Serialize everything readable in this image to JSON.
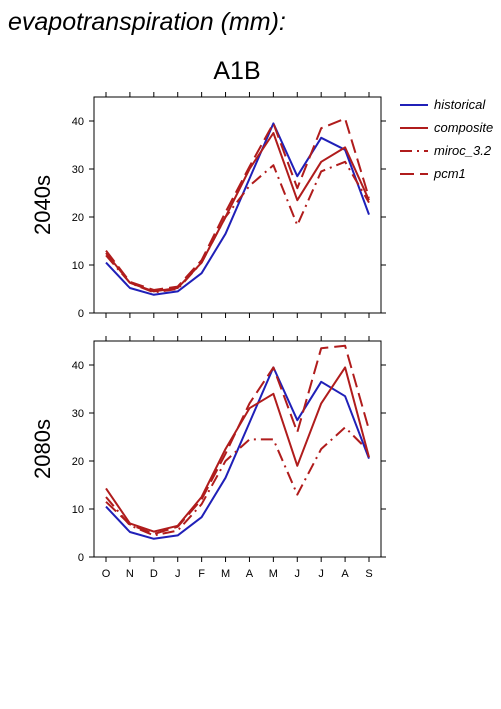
{
  "page_title": "evapotranspiration (mm):",
  "scenario_title": "A1B",
  "legend": [
    {
      "label": "historical",
      "color": "#2020b8",
      "dash": "solid"
    },
    {
      "label": "composite",
      "color": "#b01c1c",
      "dash": "solid"
    },
    {
      "label": "miroc_3.2",
      "color": "#b01c1c",
      "dash": "dashdot"
    },
    {
      "label": "pcm1",
      "color": "#b01c1c",
      "dash": "dash"
    }
  ],
  "chart_data": [
    {
      "type": "line",
      "ylabel": "2040s",
      "categories": [
        "O",
        "N",
        "D",
        "J",
        "F",
        "M",
        "A",
        "M",
        "J",
        "J",
        "A",
        "S"
      ],
      "ylim": [
        0,
        45
      ],
      "yticks": [
        0,
        10,
        20,
        30,
        40
      ],
      "series": [
        {
          "name": "historical",
          "values": [
            10.5,
            5.2,
            3.8,
            4.5,
            8.3,
            16.5,
            28.0,
            39.5,
            28.5,
            36.5,
            34.0,
            20.5
          ]
        },
        {
          "name": "composite",
          "values": [
            12.5,
            6.3,
            4.5,
            5.2,
            10.5,
            20.0,
            30.0,
            37.5,
            23.5,
            31.5,
            34.5,
            23.5
          ]
        },
        {
          "name": "miroc_3.2",
          "values": [
            12.0,
            6.3,
            4.3,
            5.0,
            10.5,
            20.0,
            26.5,
            30.8,
            18.3,
            29.5,
            31.5,
            23.0
          ]
        },
        {
          "name": "pcm1",
          "values": [
            13.0,
            6.5,
            4.8,
            5.5,
            11.0,
            21.0,
            30.5,
            39.5,
            26.0,
            38.5,
            40.5,
            24.0
          ]
        }
      ]
    },
    {
      "type": "line",
      "ylabel": "2080s",
      "categories": [
        "O",
        "N",
        "D",
        "J",
        "F",
        "M",
        "A",
        "M",
        "J",
        "J",
        "A",
        "S"
      ],
      "ylim": [
        0,
        45
      ],
      "yticks": [
        0,
        10,
        20,
        30,
        40
      ],
      "series": [
        {
          "name": "historical",
          "values": [
            10.5,
            5.2,
            3.8,
            4.5,
            8.3,
            16.5,
            28.0,
            39.5,
            28.5,
            36.5,
            33.5,
            20.5
          ]
        },
        {
          "name": "composite",
          "values": [
            14.3,
            7.0,
            5.3,
            6.5,
            12.5,
            22.5,
            31.0,
            34.0,
            19.0,
            32.0,
            39.5,
            20.8
          ]
        },
        {
          "name": "miroc_3.2",
          "values": [
            12.5,
            6.6,
            4.5,
            5.5,
            11.0,
            20.0,
            24.5,
            24.5,
            13.0,
            22.5,
            27.0,
            22.0
          ]
        },
        {
          "name": "pcm1",
          "values": [
            11.5,
            6.8,
            4.8,
            6.3,
            12.0,
            21.5,
            32.0,
            39.5,
            26.0,
            43.5,
            44.0,
            26.5
          ]
        }
      ]
    }
  ]
}
